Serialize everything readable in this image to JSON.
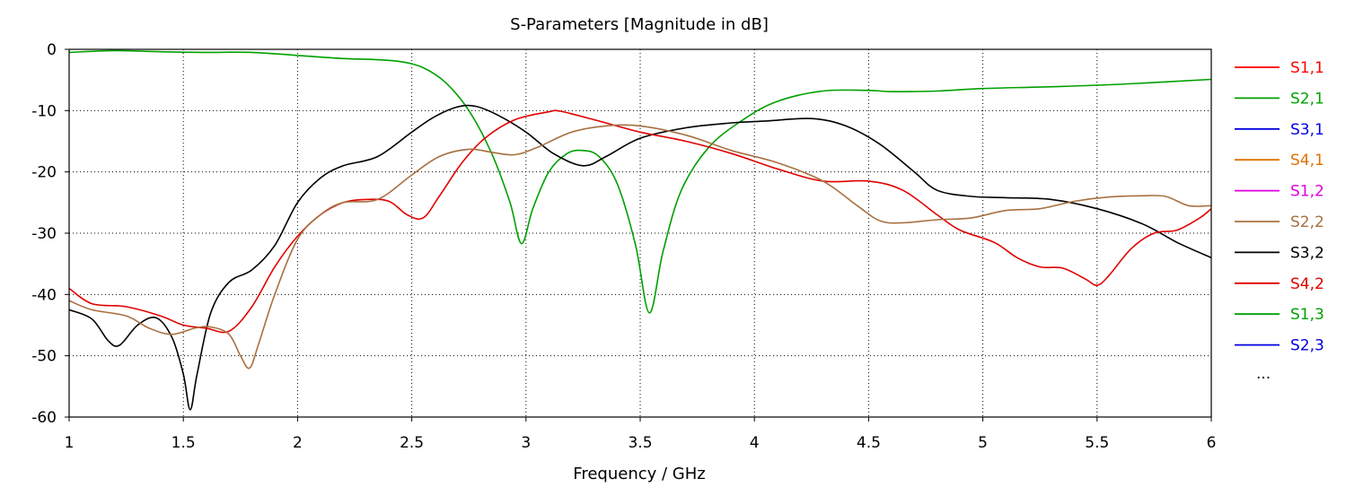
{
  "chart_data": {
    "type": "line",
    "title": "S-Parameters [Magnitude in dB]",
    "xlabel": "Frequency / GHz",
    "ylabel": "",
    "xlim": [
      1,
      6
    ],
    "ylim": [
      -60,
      0
    ],
    "xticks": [
      "1",
      "1.5",
      "2",
      "2.5",
      "3",
      "3.5",
      "4",
      "4.5",
      "5",
      "5.5",
      "6"
    ],
    "yticks": [
      "0",
      "-10",
      "-20",
      "-30",
      "-40",
      "-50",
      "-60"
    ],
    "grid": true,
    "legend_position": "right",
    "legend_more": "...",
    "legend": [
      {
        "name": "S1,1",
        "color": "#ff0000"
      },
      {
        "name": "S2,1",
        "color": "#00a000"
      },
      {
        "name": "S3,1",
        "color": "#0000e0"
      },
      {
        "name": "S4,1",
        "color": "#e07000"
      },
      {
        "name": "S1,2",
        "color": "#e000e0"
      },
      {
        "name": "S2,2",
        "color": "#a87040"
      },
      {
        "name": "S3,2",
        "color": "#000000"
      },
      {
        "name": "S4,2",
        "color": "#e00000"
      },
      {
        "name": "S1,3",
        "color": "#00a000"
      },
      {
        "name": "S2,3",
        "color": "#0000e0"
      }
    ],
    "series": [
      {
        "name": "S2,1",
        "color": "#00a000",
        "points": [
          [
            1.0,
            -0.5
          ],
          [
            1.2,
            -0.2
          ],
          [
            1.4,
            -0.4
          ],
          [
            1.6,
            -0.5
          ],
          [
            1.8,
            -0.5
          ],
          [
            2.0,
            -1.0
          ],
          [
            2.2,
            -1.5
          ],
          [
            2.35,
            -1.7
          ],
          [
            2.45,
            -2.0
          ],
          [
            2.55,
            -3.0
          ],
          [
            2.65,
            -5.5
          ],
          [
            2.75,
            -10
          ],
          [
            2.85,
            -17
          ],
          [
            2.93,
            -25
          ],
          [
            2.98,
            -31.7
          ],
          [
            3.03,
            -26
          ],
          [
            3.1,
            -20
          ],
          [
            3.18,
            -17
          ],
          [
            3.25,
            -16.5
          ],
          [
            3.32,
            -17.5
          ],
          [
            3.4,
            -22
          ],
          [
            3.48,
            -32
          ],
          [
            3.54,
            -43
          ],
          [
            3.6,
            -33
          ],
          [
            3.68,
            -23
          ],
          [
            3.8,
            -16
          ],
          [
            3.95,
            -11.5
          ],
          [
            4.1,
            -8.5
          ],
          [
            4.3,
            -6.8
          ],
          [
            4.5,
            -6.7
          ],
          [
            4.6,
            -6.9
          ],
          [
            4.8,
            -6.8
          ],
          [
            5.0,
            -6.4
          ],
          [
            5.3,
            -6.1
          ],
          [
            5.6,
            -5.7
          ],
          [
            6.0,
            -4.9
          ]
        ]
      },
      {
        "name": "S3,2",
        "color": "#000000",
        "points": [
          [
            1.0,
            -42.5
          ],
          [
            1.1,
            -44
          ],
          [
            1.17,
            -47.5
          ],
          [
            1.22,
            -48.3
          ],
          [
            1.3,
            -45
          ],
          [
            1.38,
            -43.8
          ],
          [
            1.45,
            -47
          ],
          [
            1.5,
            -53
          ],
          [
            1.53,
            -58.8
          ],
          [
            1.56,
            -53
          ],
          [
            1.62,
            -43
          ],
          [
            1.7,
            -38
          ],
          [
            1.8,
            -36
          ],
          [
            1.9,
            -32
          ],
          [
            2.0,
            -25
          ],
          [
            2.1,
            -21
          ],
          [
            2.2,
            -19
          ],
          [
            2.35,
            -17.5
          ],
          [
            2.5,
            -13.5
          ],
          [
            2.6,
            -11
          ],
          [
            2.7,
            -9.4
          ],
          [
            2.78,
            -9.3
          ],
          [
            2.88,
            -10.8
          ],
          [
            3.0,
            -13.5
          ],
          [
            3.12,
            -17
          ],
          [
            3.25,
            -19
          ],
          [
            3.35,
            -17.5
          ],
          [
            3.5,
            -14.5
          ],
          [
            3.7,
            -12.8
          ],
          [
            3.9,
            -12
          ],
          [
            4.05,
            -11.7
          ],
          [
            4.25,
            -11.3
          ],
          [
            4.4,
            -12.5
          ],
          [
            4.55,
            -15.5
          ],
          [
            4.7,
            -20
          ],
          [
            4.8,
            -23
          ],
          [
            4.95,
            -24
          ],
          [
            5.1,
            -24.2
          ],
          [
            5.3,
            -24.5
          ],
          [
            5.5,
            -26
          ],
          [
            5.7,
            -28.5
          ],
          [
            5.85,
            -31.5
          ],
          [
            6.0,
            -34
          ]
        ]
      },
      {
        "name": "S4,2",
        "color": "#e00000",
        "points": [
          [
            1.0,
            -39
          ],
          [
            1.1,
            -41.5
          ],
          [
            1.25,
            -42
          ],
          [
            1.4,
            -43.5
          ],
          [
            1.5,
            -45
          ],
          [
            1.6,
            -45.5
          ],
          [
            1.7,
            -46
          ],
          [
            1.8,
            -42
          ],
          [
            1.9,
            -35.5
          ],
          [
            2.0,
            -30.5
          ],
          [
            2.1,
            -27
          ],
          [
            2.2,
            -25
          ],
          [
            2.3,
            -24.5
          ],
          [
            2.4,
            -24.8
          ],
          [
            2.48,
            -27
          ],
          [
            2.55,
            -27.5
          ],
          [
            2.62,
            -24
          ],
          [
            2.72,
            -18.5
          ],
          [
            2.82,
            -14.5
          ],
          [
            2.95,
            -11.5
          ],
          [
            3.1,
            -10.2
          ],
          [
            3.15,
            -10.1
          ],
          [
            3.3,
            -11.5
          ],
          [
            3.5,
            -13.5
          ],
          [
            3.7,
            -15
          ],
          [
            3.9,
            -17
          ],
          [
            4.1,
            -19.5
          ],
          [
            4.3,
            -21.5
          ],
          [
            4.5,
            -21.5
          ],
          [
            4.65,
            -23
          ],
          [
            4.8,
            -27
          ],
          [
            4.9,
            -29.5
          ],
          [
            5.05,
            -31.5
          ],
          [
            5.15,
            -34
          ],
          [
            5.25,
            -35.5
          ],
          [
            5.35,
            -35.7
          ],
          [
            5.45,
            -37.5
          ],
          [
            5.5,
            -38.5
          ],
          [
            5.55,
            -37
          ],
          [
            5.65,
            -32.5
          ],
          [
            5.75,
            -30
          ],
          [
            5.85,
            -29.5
          ],
          [
            5.95,
            -27.5
          ],
          [
            6.0,
            -26
          ]
        ]
      },
      {
        "name": "S2,2",
        "color": "#a87040",
        "points": [
          [
            1.0,
            -41
          ],
          [
            1.1,
            -42.5
          ],
          [
            1.25,
            -43.5
          ],
          [
            1.35,
            -45.5
          ],
          [
            1.45,
            -46.5
          ],
          [
            1.55,
            -45.5
          ],
          [
            1.62,
            -45.3
          ],
          [
            1.7,
            -46.5
          ],
          [
            1.75,
            -50
          ],
          [
            1.79,
            -52
          ],
          [
            1.83,
            -48
          ],
          [
            1.9,
            -40
          ],
          [
            2.0,
            -31
          ],
          [
            2.1,
            -27
          ],
          [
            2.2,
            -25
          ],
          [
            2.35,
            -24.5
          ],
          [
            2.5,
            -20.5
          ],
          [
            2.62,
            -17.5
          ],
          [
            2.75,
            -16.3
          ],
          [
            2.85,
            -16.8
          ],
          [
            2.95,
            -17.2
          ],
          [
            3.05,
            -16
          ],
          [
            3.2,
            -13.5
          ],
          [
            3.35,
            -12.5
          ],
          [
            3.5,
            -12.5
          ],
          [
            3.7,
            -14
          ],
          [
            3.9,
            -16.5
          ],
          [
            4.1,
            -18.5
          ],
          [
            4.3,
            -21.5
          ],
          [
            4.45,
            -25.5
          ],
          [
            4.55,
            -28
          ],
          [
            4.65,
            -28.3
          ],
          [
            4.8,
            -27.8
          ],
          [
            4.95,
            -27.5
          ],
          [
            5.1,
            -26.3
          ],
          [
            5.25,
            -26
          ],
          [
            5.4,
            -24.8
          ],
          [
            5.55,
            -24.1
          ],
          [
            5.7,
            -23.9
          ],
          [
            5.8,
            -24
          ],
          [
            5.9,
            -25.5
          ],
          [
            6.0,
            -25.5
          ]
        ]
      }
    ]
  }
}
